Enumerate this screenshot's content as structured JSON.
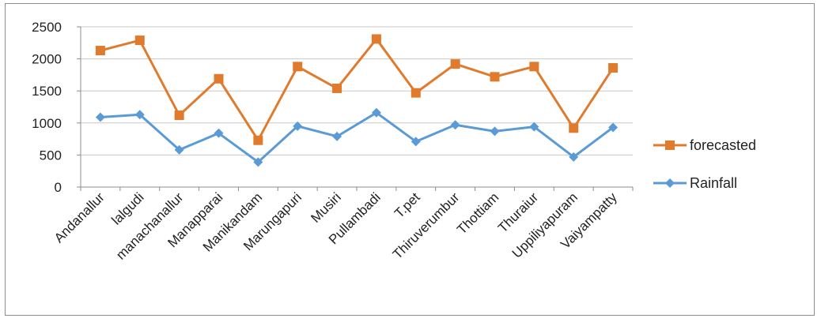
{
  "chart_data": {
    "type": "line",
    "title": "",
    "xlabel": "",
    "ylabel": "",
    "ylim": [
      0,
      2500
    ],
    "yticks": [
      "0",
      "500",
      "1000",
      "1500",
      "2000",
      "2500"
    ],
    "grid": "horizontal",
    "legend_position": "right",
    "categories": [
      "Andanallur",
      "lalgudi",
      "manachanallur",
      "Manapparai",
      "Manikandam",
      "Marungapuri",
      "Musiri",
      "Pullambadi",
      "T.pet",
      "Thiruverumbur",
      "Thottiam",
      "Thuraiur",
      "Uppiliyapuram",
      "Vaiyampatty"
    ],
    "series": [
      {
        "name": "forecasted",
        "color": "#e07b2e",
        "marker": "square",
        "values": [
          2130,
          2290,
          1120,
          1690,
          730,
          1880,
          1540,
          2310,
          1470,
          1920,
          1720,
          1880,
          920,
          1860
        ]
      },
      {
        "name": "Rainfall",
        "color": "#5b9bd5",
        "marker": "diamond",
        "values": [
          1090,
          1130,
          580,
          840,
          390,
          950,
          790,
          1160,
          710,
          970,
          870,
          940,
          470,
          930
        ]
      }
    ]
  }
}
